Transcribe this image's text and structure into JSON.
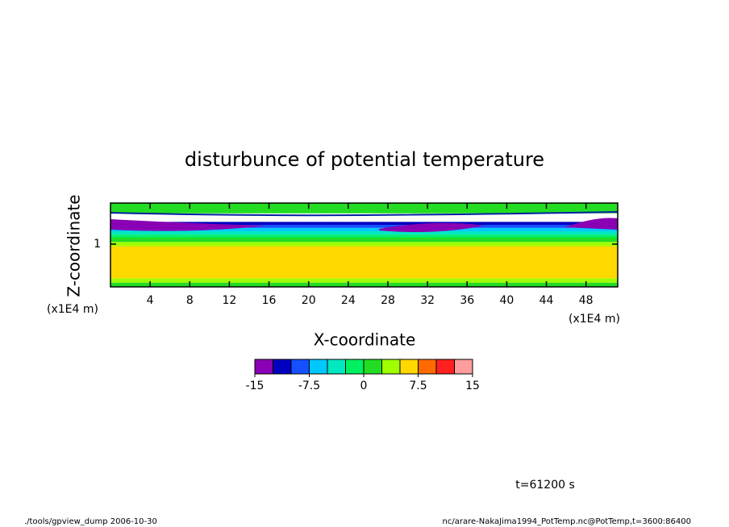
{
  "chart_data": {
    "type": "contour",
    "title": "disturbunce of potential temperature",
    "x_label": "X-coordinate",
    "y_label": "Z-coordinate",
    "x_unit": "(x1E4 m)",
    "y_unit": "(x1E4 m)",
    "xlim": [
      0,
      51.2
    ],
    "xticks": [
      4,
      8,
      12,
      16,
      20,
      24,
      28,
      32,
      36,
      40,
      44,
      48
    ],
    "ylim": [
      0,
      1.96
    ],
    "yticks": [
      1
    ],
    "z_edges": [
      0,
      0.1,
      0.2,
      0.95,
      1.05,
      1.15,
      1.22,
      1.3,
      1.38,
      1.45,
      1.52,
      1.72,
      1.96
    ],
    "values": [
      1,
      3.75,
      6,
      3.75,
      1,
      -1,
      -3.5,
      -6,
      -8.5,
      -11,
      null,
      1
    ],
    "levels": [
      -15,
      -12.5,
      -10,
      -7.5,
      -5,
      -2.5,
      0,
      2.5,
      5,
      7.5,
      10,
      12.5,
      15
    ],
    "colors": [
      "#8a00b4",
      "#0000c0",
      "#1450ff",
      "#00c8ff",
      "#00e8c0",
      "#00f060",
      "#22dd22",
      "#a0ff00",
      "#ffd800",
      "#ff6a00",
      "#ff2020",
      "#ff9c9c"
    ],
    "colorbar_ticks": [
      -15,
      -7.5,
      0,
      7.5,
      15
    ],
    "time_label": "t=61200 s",
    "footer_left": "./tools/gpview_dump  2006-10-30",
    "footer_right": "nc/arare-NakaJima1994_PotTemp.nc@PotTemp,t=3600:86400"
  }
}
